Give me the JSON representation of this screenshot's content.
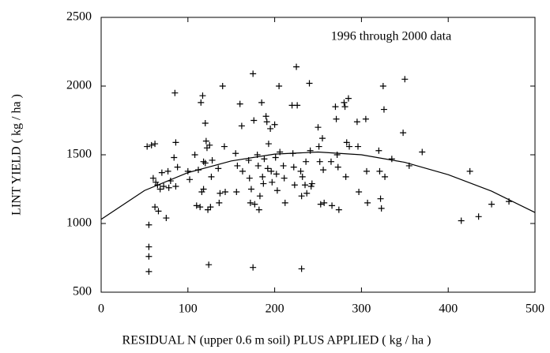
{
  "chart_data": {
    "type": "scatter",
    "annotation": "1996 through 2000 data",
    "xlabel": "RESIDUAL N (upper 0.6 m soil) PLUS APPLIED ( kg / ha )",
    "ylabel": "LINT YIELD ( kg / ha )",
    "xlim": [
      0,
      500
    ],
    "ylim": [
      500,
      2500
    ],
    "xticks": [
      0,
      100,
      200,
      300,
      400,
      500
    ],
    "yticks": [
      500,
      1000,
      1500,
      2000,
      2500
    ],
    "color": "#000000",
    "points": {
      "x": [
        55,
        55,
        55,
        55,
        53,
        58,
        62,
        60,
        63,
        65,
        68,
        62,
        66,
        70,
        72,
        75,
        77,
        78,
        80,
        85,
        86,
        88,
        84,
        86,
        100,
        102,
        110,
        112,
        108,
        115,
        117,
        118,
        116,
        114,
        120,
        121,
        122,
        120,
        118,
        123,
        124,
        125,
        127,
        126,
        128,
        135,
        137,
        136,
        140,
        142,
        143,
        155,
        157,
        156,
        160,
        162,
        163,
        170,
        171,
        172,
        173,
        175,
        176,
        177,
        175,
        180,
        181,
        182,
        183,
        185,
        186,
        187,
        188,
        190,
        191,
        192,
        193,
        195,
        196,
        197,
        200,
        201,
        202,
        203,
        205,
        206,
        210,
        211,
        212,
        220,
        221,
        222,
        223,
        225,
        226,
        230,
        231,
        232,
        231,
        235,
        236,
        237,
        240,
        241,
        242,
        243,
        250,
        251,
        252,
        253,
        255,
        256,
        257,
        265,
        266,
        270,
        271,
        272,
        273,
        274,
        280,
        281,
        282,
        283,
        285,
        286,
        295,
        296,
        297,
        305,
        306,
        307,
        320,
        321,
        322,
        323,
        325,
        326,
        327,
        335,
        350,
        348,
        355,
        370,
        415,
        425,
        435,
        450,
        470
      ],
      "values": [
        650,
        760,
        830,
        990,
        1560,
        1570,
        1580,
        1330,
        1300,
        1280,
        1250,
        1120,
        1090,
        1370,
        1270,
        1040,
        1380,
        1260,
        1310,
        1950,
        1590,
        1410,
        1480,
        1270,
        1380,
        1320,
        1130,
        1390,
        1500,
        1880,
        1930,
        1450,
        1230,
        1120,
        1730,
        1600,
        1550,
        1440,
        1250,
        1100,
        700,
        1570,
        1340,
        1120,
        1460,
        1400,
        1220,
        1150,
        2000,
        1560,
        1230,
        1510,
        1420,
        1230,
        1870,
        1710,
        1380,
        1460,
        1330,
        1150,
        1250,
        2090,
        1750,
        1140,
        680,
        1500,
        1420,
        1100,
        1200,
        1880,
        1340,
        1290,
        1470,
        1780,
        1740,
        1400,
        1580,
        1690,
        1380,
        1300,
        1720,
        1480,
        1360,
        1240,
        2000,
        1520,
        1420,
        1330,
        1150,
        1860,
        1510,
        1410,
        1280,
        2140,
        1860,
        1380,
        1200,
        1340,
        670,
        1280,
        1450,
        1220,
        2020,
        1530,
        1270,
        1290,
        1700,
        1560,
        1450,
        1140,
        1620,
        1390,
        1150,
        1450,
        1130,
        1850,
        1760,
        1500,
        1410,
        1100,
        1880,
        1850,
        1340,
        1590,
        1910,
        1560,
        1740,
        1560,
        1230,
        1760,
        1380,
        1150,
        1530,
        1380,
        1180,
        1110,
        2000,
        1830,
        1340,
        1470,
        2050,
        1660,
        1420,
        1520,
        1020,
        1380,
        1050,
        1140,
        1160
      ]
    },
    "fit": {
      "x": [
        0,
        50,
        100,
        150,
        200,
        250,
        300,
        350,
        400,
        450,
        500
      ],
      "values": [
        1030,
        1240,
        1370,
        1455,
        1505,
        1520,
        1500,
        1445,
        1355,
        1235,
        1080
      ]
    }
  }
}
